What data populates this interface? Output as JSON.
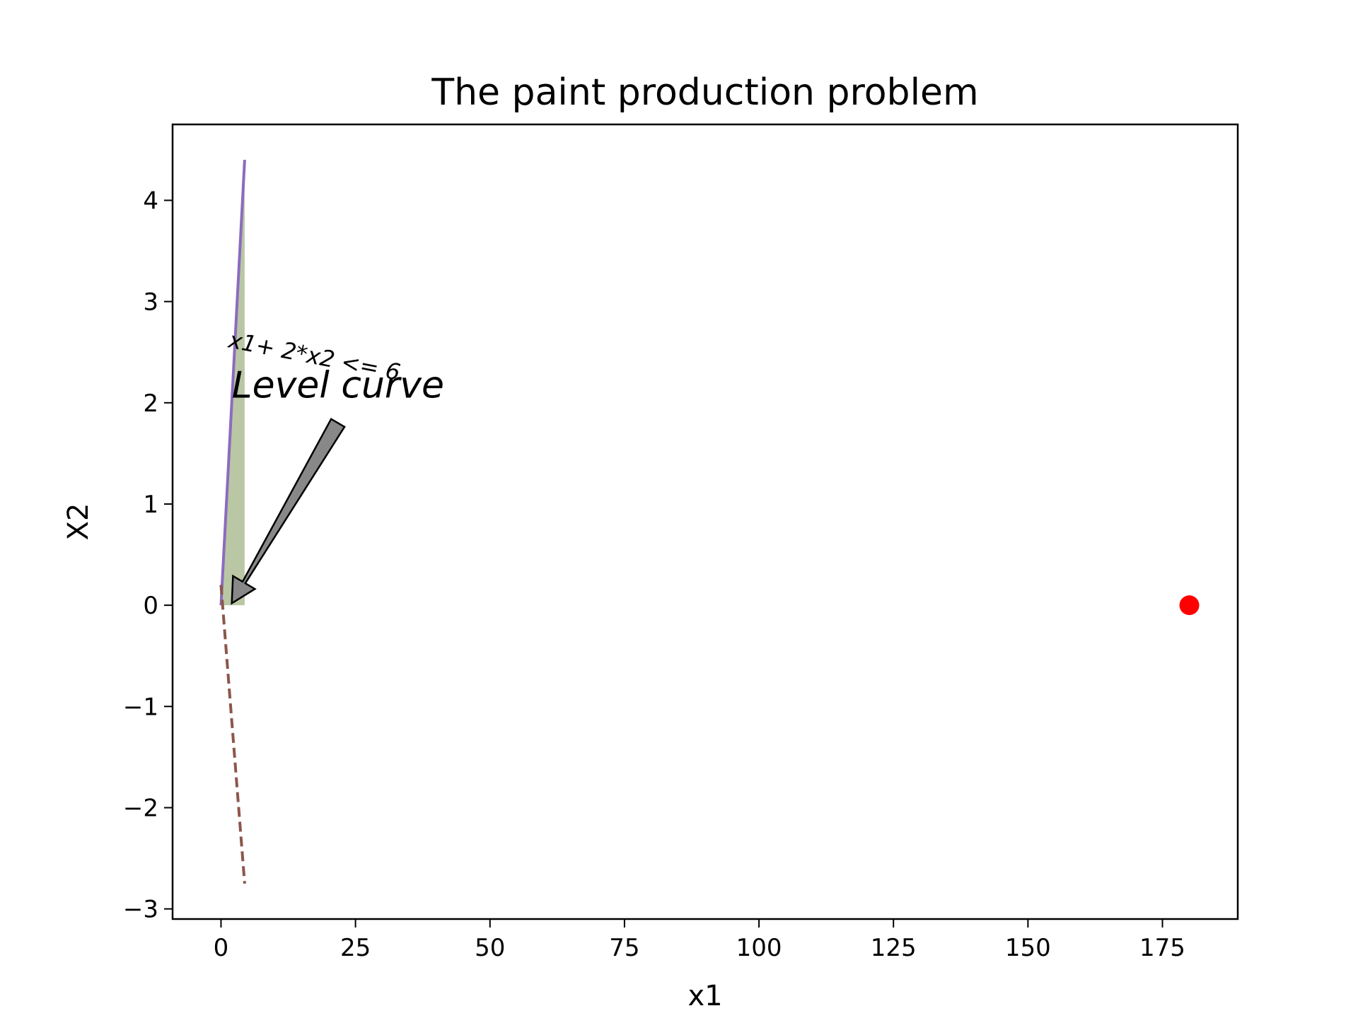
{
  "chart_data": {
    "type": "line",
    "title": "The paint production problem",
    "xlabel": "x1",
    "ylabel": "X2",
    "xlim": [
      -9,
      189
    ],
    "ylim": [
      -3.1,
      4.75
    ],
    "xticks": [
      0,
      25,
      50,
      75,
      100,
      125,
      150,
      175
    ],
    "xtick_labels": [
      "0",
      "25",
      "50",
      "75",
      "100",
      "125",
      "150",
      "175"
    ],
    "yticks": [
      -3,
      -2,
      -1,
      0,
      1,
      2,
      3,
      4
    ],
    "ytick_labels": [
      "−3",
      "−2",
      "−1",
      "0",
      "1",
      "2",
      "3",
      "4"
    ],
    "grid": false,
    "series": [
      {
        "color": "#8c6bbf",
        "style": "solid",
        "x": [
          0,
          4.4
        ],
        "y": [
          0,
          4.4
        ]
      },
      {
        "color": "#8c564b",
        "style": "dashed",
        "x": [
          0,
          4.4
        ],
        "y": [
          0.2,
          -2.75
        ]
      }
    ],
    "fill_region": {
      "color": "#b9c7a4",
      "x": [
        0,
        4.4,
        4.4
      ],
      "y": [
        0,
        4.4,
        0
      ]
    },
    "points": [
      {
        "x": 180,
        "y": 0,
        "color": "#ff0000"
      }
    ],
    "annotations": [
      {
        "text": "x1+ 2*x2 <= 6",
        "x": 1.2,
        "y": 2.55,
        "rotation": 11
      },
      {
        "text": "Level curve",
        "x": 2,
        "y": 2.05,
        "arrow_to": [
          2,
          0.02
        ],
        "arrow_color": "#888888"
      }
    ]
  }
}
